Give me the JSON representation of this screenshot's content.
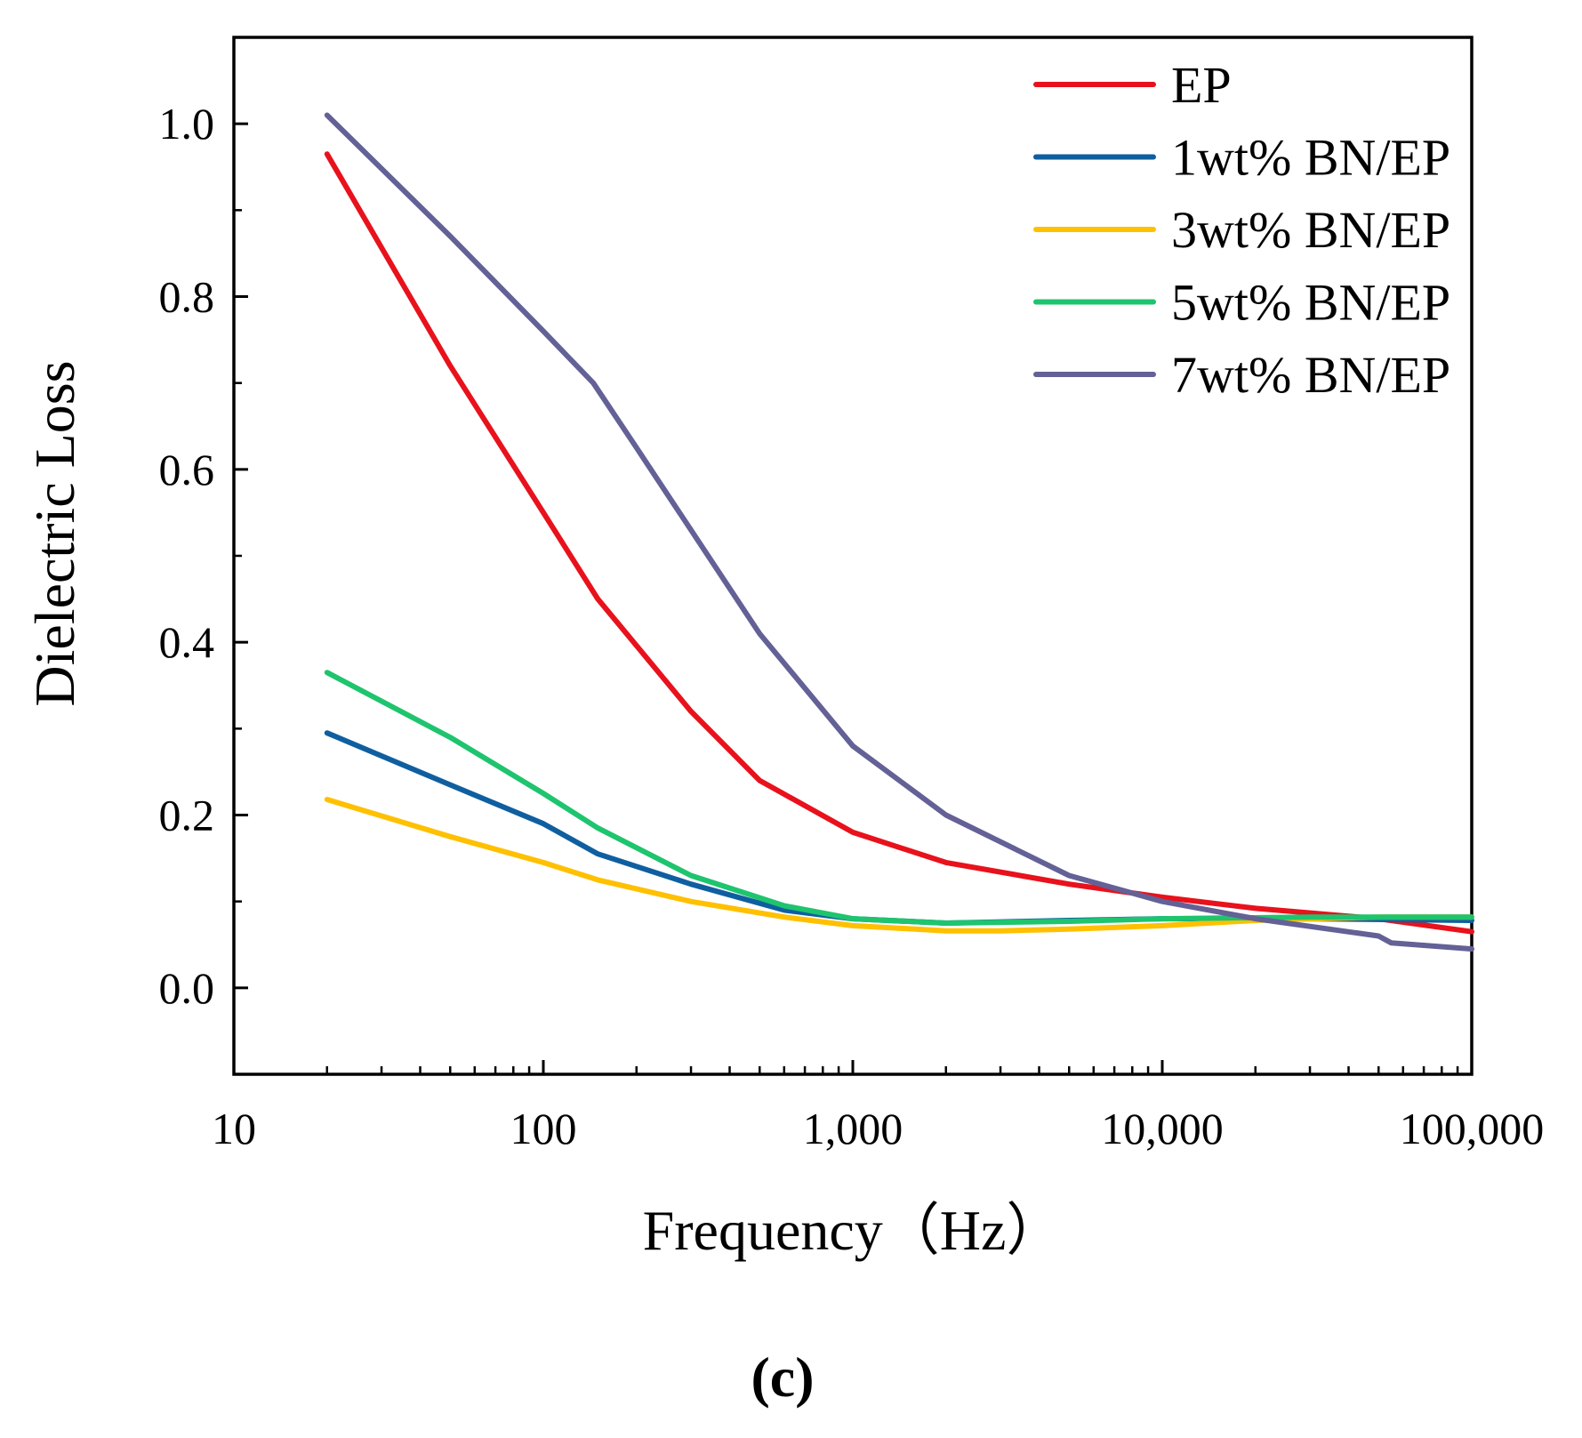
{
  "chart_data": {
    "type": "line",
    "xscale": "log",
    "xlim": [
      10,
      100000
    ],
    "ylim": [
      -0.1,
      1.1
    ],
    "xlabel": "Frequency（Hz）",
    "ylabel": "Dielectric Loss",
    "panel_label": "(c)",
    "legend_position": "top-right",
    "x_ticks": [
      {
        "value": 10,
        "label": "10"
      },
      {
        "value": 100,
        "label": "100"
      },
      {
        "value": 1000,
        "label": "1,000"
      },
      {
        "value": 10000,
        "label": "10,000"
      },
      {
        "value": 100000,
        "label": "100,000"
      }
    ],
    "y_ticks": [
      {
        "value": 0.0,
        "label": "0.0"
      },
      {
        "value": 0.2,
        "label": "0.2"
      },
      {
        "value": 0.4,
        "label": "0.4"
      },
      {
        "value": 0.6,
        "label": "0.6"
      },
      {
        "value": 0.8,
        "label": "0.8"
      },
      {
        "value": 1.0,
        "label": "1.0"
      }
    ],
    "series": [
      {
        "name": "EP",
        "color": "#e8121c",
        "points": [
          [
            20,
            0.965
          ],
          [
            50,
            0.72
          ],
          [
            100,
            0.55
          ],
          [
            150,
            0.45
          ],
          [
            300,
            0.32
          ],
          [
            500,
            0.24
          ],
          [
            1000,
            0.18
          ],
          [
            2000,
            0.145
          ],
          [
            5000,
            0.12
          ],
          [
            10000,
            0.105
          ],
          [
            20000,
            0.092
          ],
          [
            50000,
            0.08
          ],
          [
            100000,
            0.065
          ]
        ]
      },
      {
        "name": "1wt% BN/EP",
        "color": "#0f5fa0",
        "points": [
          [
            20,
            0.295
          ],
          [
            50,
            0.235
          ],
          [
            100,
            0.19
          ],
          [
            150,
            0.155
          ],
          [
            300,
            0.12
          ],
          [
            600,
            0.09
          ],
          [
            1000,
            0.08
          ],
          [
            2000,
            0.075
          ],
          [
            5000,
            0.078
          ],
          [
            10000,
            0.08
          ],
          [
            30000,
            0.08
          ],
          [
            100000,
            0.078
          ]
        ]
      },
      {
        "name": "3wt% BN/EP",
        "color": "#ffc000",
        "points": [
          [
            20,
            0.218
          ],
          [
            50,
            0.175
          ],
          [
            100,
            0.145
          ],
          [
            150,
            0.125
          ],
          [
            300,
            0.1
          ],
          [
            600,
            0.082
          ],
          [
            1000,
            0.072
          ],
          [
            2000,
            0.066
          ],
          [
            3000,
            0.066
          ],
          [
            5000,
            0.068
          ],
          [
            10000,
            0.072
          ],
          [
            20000,
            0.078
          ],
          [
            50000,
            0.082
          ],
          [
            100000,
            0.082
          ]
        ]
      },
      {
        "name": "5wt% BN/EP",
        "color": "#1ec46e",
        "points": [
          [
            20,
            0.365
          ],
          [
            50,
            0.29
          ],
          [
            100,
            0.225
          ],
          [
            150,
            0.185
          ],
          [
            300,
            0.13
          ],
          [
            600,
            0.095
          ],
          [
            1000,
            0.08
          ],
          [
            2000,
            0.075
          ],
          [
            5000,
            0.077
          ],
          [
            10000,
            0.08
          ],
          [
            30000,
            0.082
          ],
          [
            100000,
            0.082
          ]
        ]
      },
      {
        "name": "7wt% BN/EP",
        "color": "#636196",
        "points": [
          [
            20,
            1.01
          ],
          [
            50,
            0.87
          ],
          [
            100,
            0.76
          ],
          [
            145,
            0.7
          ],
          [
            200,
            0.625
          ],
          [
            300,
            0.53
          ],
          [
            500,
            0.41
          ],
          [
            1000,
            0.28
          ],
          [
            2000,
            0.2
          ],
          [
            5000,
            0.13
          ],
          [
            10000,
            0.1
          ],
          [
            20000,
            0.08
          ],
          [
            50000,
            0.06
          ],
          [
            55000,
            0.052
          ],
          [
            100000,
            0.045
          ]
        ]
      }
    ]
  }
}
